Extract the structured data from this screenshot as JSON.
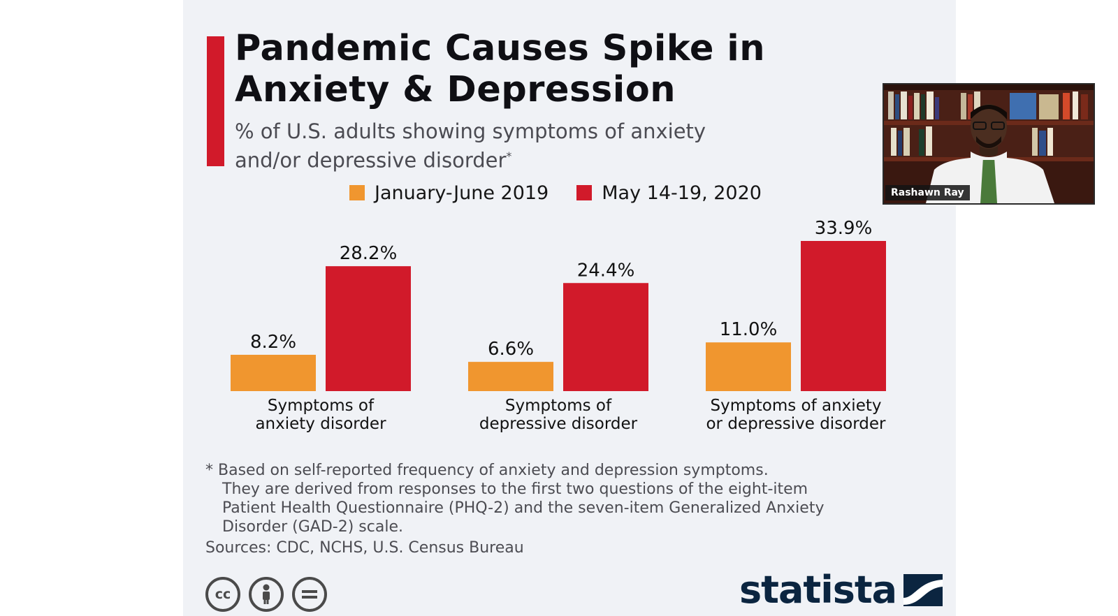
{
  "title_line1": "Pandemic Causes Spike in",
  "title_line2": "Anxiety & Depression",
  "subtitle_line1": "% of U.S. adults showing symptoms of anxiety",
  "subtitle_line2": "and/or depressive disorder",
  "subtitle_mark": "*",
  "colors": {
    "series_2019": "#f0962f",
    "series_2020": "#d11a2a",
    "accent": "#d11a2a",
    "brand": "#0b2540"
  },
  "chart_data": {
    "type": "bar",
    "categories": [
      [
        "Symptoms of",
        "anxiety disorder"
      ],
      [
        "Symptoms of",
        "depressive disorder"
      ],
      [
        "Symptoms of anxiety",
        "or depressive disorder"
      ]
    ],
    "series": [
      {
        "name": "January-June 2019",
        "values": [
          8.2,
          6.6,
          11.0
        ],
        "labels": [
          "8.2%",
          "6.6%",
          "11.0%"
        ]
      },
      {
        "name": "May 14-19, 2020",
        "values": [
          28.2,
          24.4,
          33.9
        ],
        "labels": [
          "28.2%",
          "24.4%",
          "33.9%"
        ]
      }
    ],
    "ylim": [
      0,
      33.9
    ],
    "grid": false,
    "legend": "top"
  },
  "footnote": [
    "* Based on self-reported frequency of anxiety and depression symptoms.",
    "They are derived from responses to the first two questions of the eight-item",
    "Patient Health Questionnaire (PHQ-2) and the seven-item Generalized Anxiety",
    "Disorder (GAD-2) scale."
  ],
  "sources": "Sources: CDC, NCHS, U.S. Census Bureau",
  "license_icons": [
    "cc-icon",
    "by-person-icon",
    "nd-equals-icon"
  ],
  "cc_text": "cc",
  "brand": "statista",
  "webcam": {
    "name": "Rashawn Ray"
  }
}
